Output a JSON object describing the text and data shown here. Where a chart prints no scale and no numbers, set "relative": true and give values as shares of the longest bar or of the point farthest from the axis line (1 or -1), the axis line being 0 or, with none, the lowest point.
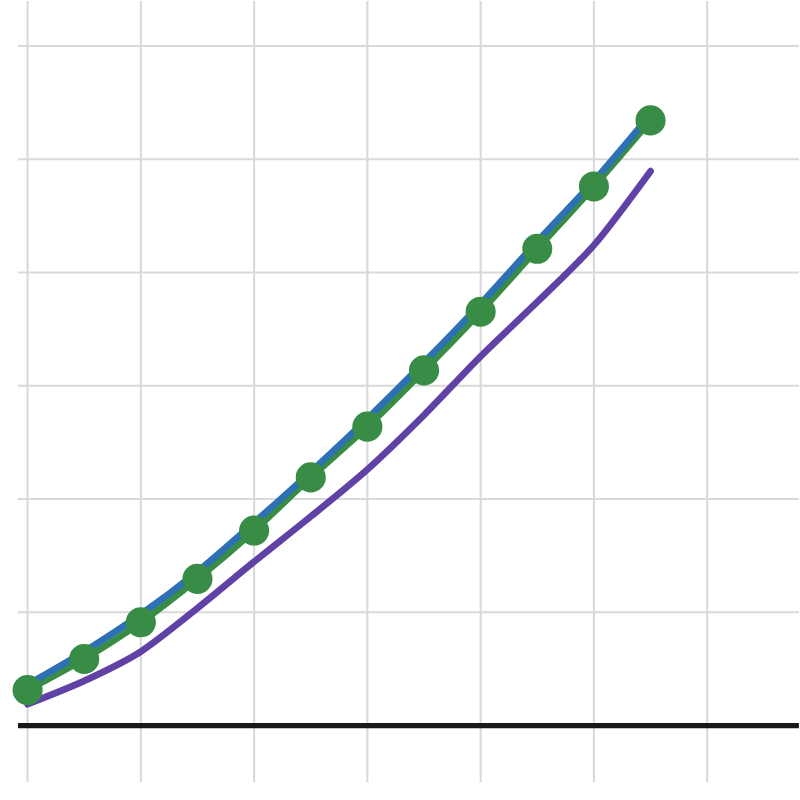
{
  "chart_data": {
    "type": "line",
    "relative": true,
    "grid": true,
    "categories": [
      null,
      null,
      null,
      null,
      null,
      null,
      null,
      null,
      null,
      null,
      null,
      null
    ],
    "series": [
      {
        "color": "#6042a6",
        "marker": "none",
        "values": [
          0.035,
          0.073,
          0.121,
          0.192,
          0.268,
          0.342,
          0.419,
          0.508,
          0.604,
          0.693,
          0.786,
          0.907
        ]
      },
      {
        "color": "#388c46",
        "marker": "circle",
        "values": [
          0.058,
          0.109,
          0.169,
          0.24,
          0.319,
          0.406,
          0.489,
          0.581,
          0.677,
          0.78,
          0.882,
          0.99
        ]
      },
      {
        "color": "#2d70b3",
        "marker": "none",
        "values": [
          0.067,
          0.121,
          0.182,
          0.252,
          0.332,
          0.415,
          0.502,
          0.594,
          0.69,
          0.792,
          0.891,
          1
        ]
      }
    ]
  }
}
